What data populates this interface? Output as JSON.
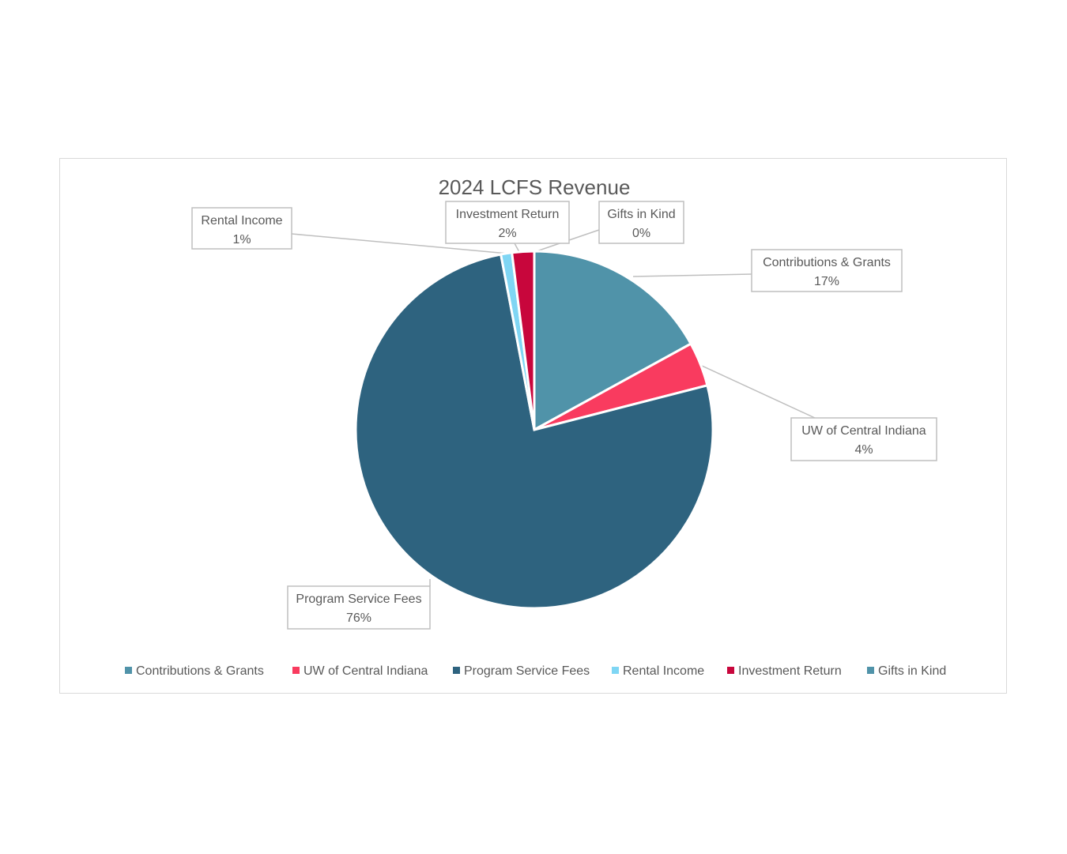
{
  "chart_data": {
    "type": "pie",
    "title": "2024 LCFS Revenue",
    "legend_position": "bottom",
    "slices": [
      {
        "name": "Contributions & Grants",
        "value": 17,
        "label": "17%",
        "color": "#5093A9"
      },
      {
        "name": "UW of Central Indiana",
        "value": 4,
        "label": "4%",
        "color": "#F93B5F"
      },
      {
        "name": "Program Service Fees",
        "value": 76,
        "label": "76%",
        "color": "#2E637F"
      },
      {
        "name": "Rental Income",
        "value": 1,
        "label": "1%",
        "color": "#7FD6F4"
      },
      {
        "name": "Investment Return",
        "value": 2,
        "label": "2%",
        "color": "#C8063C"
      },
      {
        "name": "Gifts in Kind",
        "value": 0,
        "label": "0%",
        "color": "#5093A9"
      }
    ]
  }
}
